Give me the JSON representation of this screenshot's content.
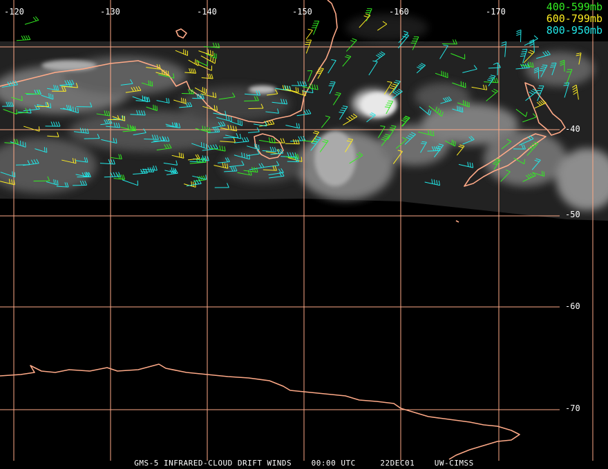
{
  "legend": [
    {
      "label": "400-599mb",
      "color": "#33ee22"
    },
    {
      "label": "600-799mb",
      "color": "#ffee22"
    },
    {
      "label": "800-950mb",
      "color": "#22e8e8"
    }
  ],
  "longitude_labels": [
    "-120",
    "-130",
    "-140",
    "-150",
    "-160",
    "-170"
  ],
  "latitude_labels": [
    "-40",
    "-50",
    "-60",
    "-70"
  ],
  "footer": {
    "product": "GMS-5 INFRARED-CLOUD DRIFT WINDS",
    "time": "00:00 UTC",
    "date": "22DEC01",
    "source": "UW-CIMSS"
  },
  "colors": {
    "coastline": "#ffaa88",
    "grid": "#ffaa88",
    "background": "#000000"
  }
}
